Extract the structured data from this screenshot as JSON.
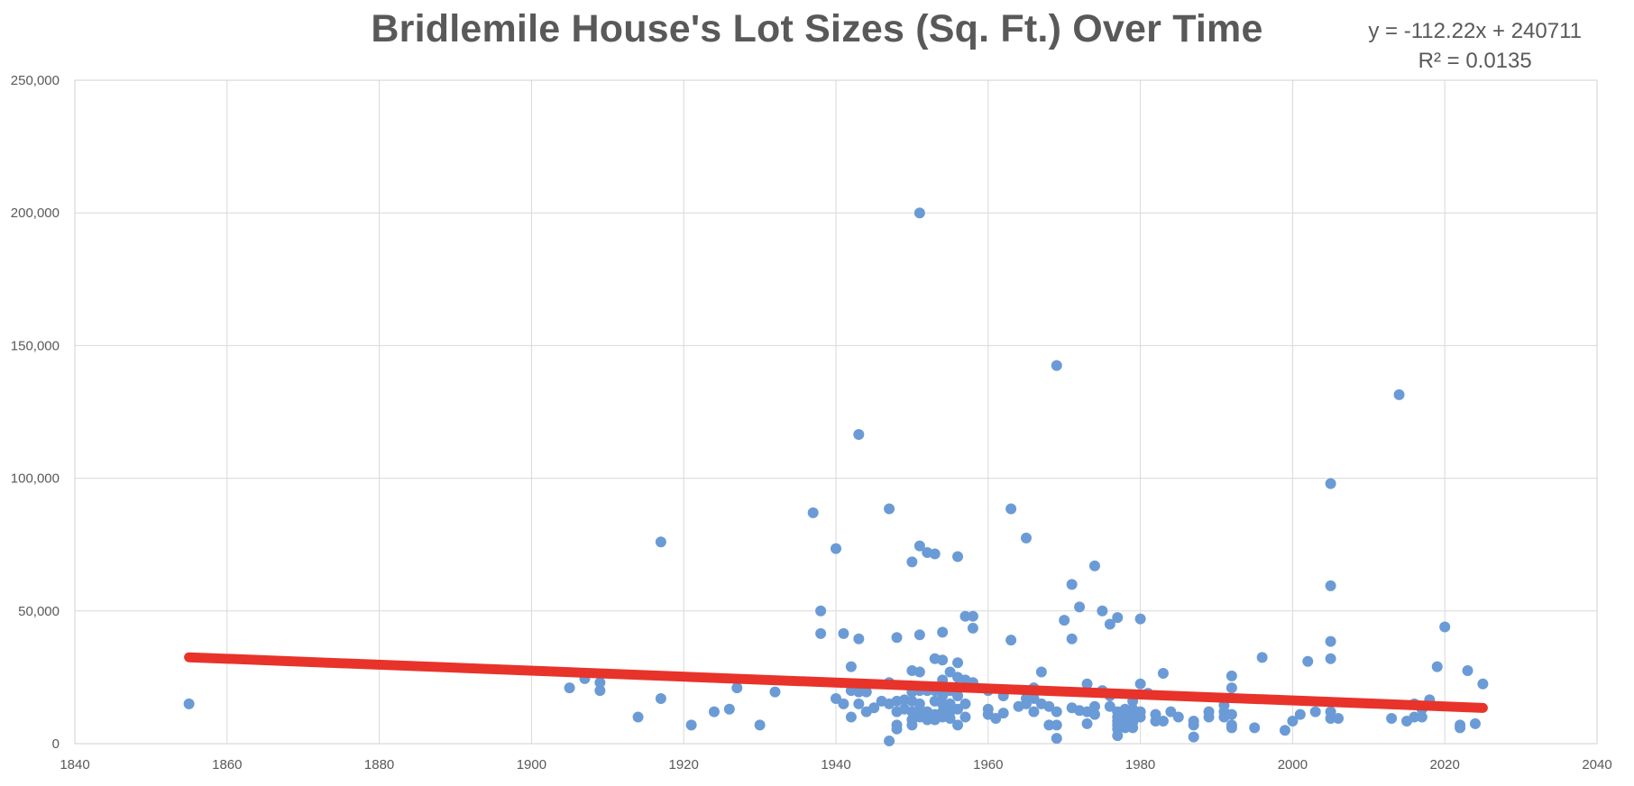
{
  "chart_data": {
    "type": "scatter",
    "title": "Bridlemile House's Lot Sizes (Sq. Ft.) Over Time",
    "xlabel": "",
    "ylabel": "",
    "xlim": [
      1840,
      2040
    ],
    "ylim": [
      0,
      250000
    ],
    "x_ticks": [
      "1840",
      "1860",
      "1880",
      "1900",
      "1920",
      "1940",
      "1960",
      "1980",
      "2000",
      "2020",
      "2040"
    ],
    "y_ticks": [
      "0",
      "50,000",
      "100,000",
      "150,000",
      "200,000",
      "250,000"
    ],
    "grid": true,
    "trendline": {
      "equation": "y = -112.22x + 240711",
      "r_squared": "R² = 0.0135",
      "slope": -112.22,
      "intercept": 240711,
      "x_range": [
        1855,
        2025
      ],
      "color": "#e8332a"
    },
    "point_color": "#6b9bd6",
    "series": [
      {
        "points": [
          [
            1855,
            15000
          ],
          [
            1905,
            21000
          ],
          [
            1907,
            24500
          ],
          [
            1909,
            23000
          ],
          [
            1909,
            20000
          ],
          [
            1914,
            10000
          ],
          [
            1917,
            76000
          ],
          [
            1917,
            17000
          ],
          [
            1921,
            7000
          ],
          [
            1924,
            12000
          ],
          [
            1926,
            13000
          ],
          [
            1927,
            21000
          ],
          [
            1930,
            7000
          ],
          [
            1932,
            19500
          ],
          [
            1937,
            87000
          ],
          [
            1938,
            50000
          ],
          [
            1938,
            41500
          ],
          [
            1940,
            73500
          ],
          [
            1940,
            17000
          ],
          [
            1941,
            41500
          ],
          [
            1941,
            15000
          ],
          [
            1942,
            29000
          ],
          [
            1942,
            20000
          ],
          [
            1942,
            10000
          ],
          [
            1943,
            116500
          ],
          [
            1943,
            39500
          ],
          [
            1943,
            19500
          ],
          [
            1943,
            15000
          ],
          [
            1944,
            12000
          ],
          [
            1944,
            19500
          ],
          [
            1945,
            13500
          ],
          [
            1946,
            16000
          ],
          [
            1947,
            88500
          ],
          [
            1947,
            23000
          ],
          [
            1947,
            15000
          ],
          [
            1947,
            1000
          ],
          [
            1948,
            40000
          ],
          [
            1948,
            16000
          ],
          [
            1948,
            12000
          ],
          [
            1948,
            7000
          ],
          [
            1948,
            5500
          ],
          [
            1949,
            16500
          ],
          [
            1949,
            13000
          ],
          [
            1950,
            68500
          ],
          [
            1950,
            27500
          ],
          [
            1950,
            19500
          ],
          [
            1950,
            16000
          ],
          [
            1950,
            12000
          ],
          [
            1950,
            9000
          ],
          [
            1950,
            7000
          ],
          [
            1951,
            200000
          ],
          [
            1951,
            74500
          ],
          [
            1951,
            41000
          ],
          [
            1951,
            27000
          ],
          [
            1951,
            20000
          ],
          [
            1951,
            15000
          ],
          [
            1951,
            13000
          ],
          [
            1951,
            10000
          ],
          [
            1952,
            72000
          ],
          [
            1952,
            20000
          ],
          [
            1952,
            12000
          ],
          [
            1952,
            9000
          ],
          [
            1953,
            71500
          ],
          [
            1953,
            32000
          ],
          [
            1953,
            20000
          ],
          [
            1953,
            16000
          ],
          [
            1953,
            11000
          ],
          [
            1953,
            9000
          ],
          [
            1954,
            42000
          ],
          [
            1954,
            31500
          ],
          [
            1954,
            24000
          ],
          [
            1954,
            18000
          ],
          [
            1954,
            15000
          ],
          [
            1954,
            12000
          ],
          [
            1954,
            10000
          ],
          [
            1955,
            27000
          ],
          [
            1955,
            20000
          ],
          [
            1955,
            15000
          ],
          [
            1955,
            12000
          ],
          [
            1955,
            9500
          ],
          [
            1956,
            70500
          ],
          [
            1956,
            30500
          ],
          [
            1956,
            25000
          ],
          [
            1956,
            18000
          ],
          [
            1956,
            13000
          ],
          [
            1956,
            7000
          ],
          [
            1957,
            48000
          ],
          [
            1957,
            24000
          ],
          [
            1957,
            15000
          ],
          [
            1957,
            10000
          ],
          [
            1958,
            48000
          ],
          [
            1958,
            43500
          ],
          [
            1958,
            23000
          ],
          [
            1960,
            20000
          ],
          [
            1960,
            13000
          ],
          [
            1960,
            11000
          ],
          [
            1961,
            9500
          ],
          [
            1962,
            18000
          ],
          [
            1962,
            11500
          ],
          [
            1963,
            88500
          ],
          [
            1963,
            39000
          ],
          [
            1964,
            14000
          ],
          [
            1965,
            77500
          ],
          [
            1965,
            17000
          ],
          [
            1965,
            15000
          ],
          [
            1966,
            21000
          ],
          [
            1966,
            17000
          ],
          [
            1966,
            12000
          ],
          [
            1967,
            27000
          ],
          [
            1967,
            15000
          ],
          [
            1968,
            14000
          ],
          [
            1968,
            7000
          ],
          [
            1969,
            142500
          ],
          [
            1969,
            12000
          ],
          [
            1969,
            7000
          ],
          [
            1969,
            2000
          ],
          [
            1970,
            46500
          ],
          [
            1971,
            60000
          ],
          [
            1971,
            39500
          ],
          [
            1971,
            13500
          ],
          [
            1972,
            51500
          ],
          [
            1972,
            12500
          ],
          [
            1973,
            22500
          ],
          [
            1973,
            12000
          ],
          [
            1973,
            7500
          ],
          [
            1974,
            67000
          ],
          [
            1974,
            14000
          ],
          [
            1974,
            11000
          ],
          [
            1975,
            50000
          ],
          [
            1975,
            20000
          ],
          [
            1976,
            45000
          ],
          [
            1976,
            18000
          ],
          [
            1976,
            14000
          ],
          [
            1977,
            47500
          ],
          [
            1977,
            12000
          ],
          [
            1977,
            10000
          ],
          [
            1977,
            8500
          ],
          [
            1977,
            7000
          ],
          [
            1977,
            5500
          ],
          [
            1977,
            3000
          ],
          [
            1978,
            13000
          ],
          [
            1978,
            11000
          ],
          [
            1978,
            9000
          ],
          [
            1978,
            7000
          ],
          [
            1978,
            6000
          ],
          [
            1979,
            16000
          ],
          [
            1979,
            13000
          ],
          [
            1979,
            10000
          ],
          [
            1979,
            8000
          ],
          [
            1979,
            6000
          ],
          [
            1980,
            47000
          ],
          [
            1980,
            22500
          ],
          [
            1980,
            12000
          ],
          [
            1980,
            10000
          ],
          [
            1981,
            19000
          ],
          [
            1982,
            11000
          ],
          [
            1982,
            8500
          ],
          [
            1983,
            26500
          ],
          [
            1983,
            8500
          ],
          [
            1984,
            12000
          ],
          [
            1985,
            10000
          ],
          [
            1987,
            8500
          ],
          [
            1987,
            7000
          ],
          [
            1987,
            2500
          ],
          [
            1989,
            12000
          ],
          [
            1989,
            10000
          ],
          [
            1991,
            14500
          ],
          [
            1991,
            12000
          ],
          [
            1991,
            10000
          ],
          [
            1992,
            25500
          ],
          [
            1992,
            21000
          ],
          [
            1992,
            11000
          ],
          [
            1992,
            7000
          ],
          [
            1992,
            6000
          ],
          [
            1995,
            6000
          ],
          [
            1996,
            32500
          ],
          [
            1999,
            5000
          ],
          [
            2000,
            8500
          ],
          [
            2001,
            11000
          ],
          [
            2002,
            31000
          ],
          [
            2003,
            12000
          ],
          [
            2005,
            98000
          ],
          [
            2005,
            59500
          ],
          [
            2005,
            38500
          ],
          [
            2005,
            32000
          ],
          [
            2005,
            12000
          ],
          [
            2005,
            9500
          ],
          [
            2006,
            9500
          ],
          [
            2013,
            9500
          ],
          [
            2014,
            131500
          ],
          [
            2015,
            8500
          ],
          [
            2016,
            15000
          ],
          [
            2016,
            10000
          ],
          [
            2017,
            13000
          ],
          [
            2017,
            10000
          ],
          [
            2018,
            16500
          ],
          [
            2019,
            29000
          ],
          [
            2020,
            44000
          ],
          [
            2022,
            7000
          ],
          [
            2022,
            6000
          ],
          [
            2023,
            27500
          ],
          [
            2024,
            7500
          ],
          [
            2025,
            22500
          ]
        ]
      }
    ]
  }
}
